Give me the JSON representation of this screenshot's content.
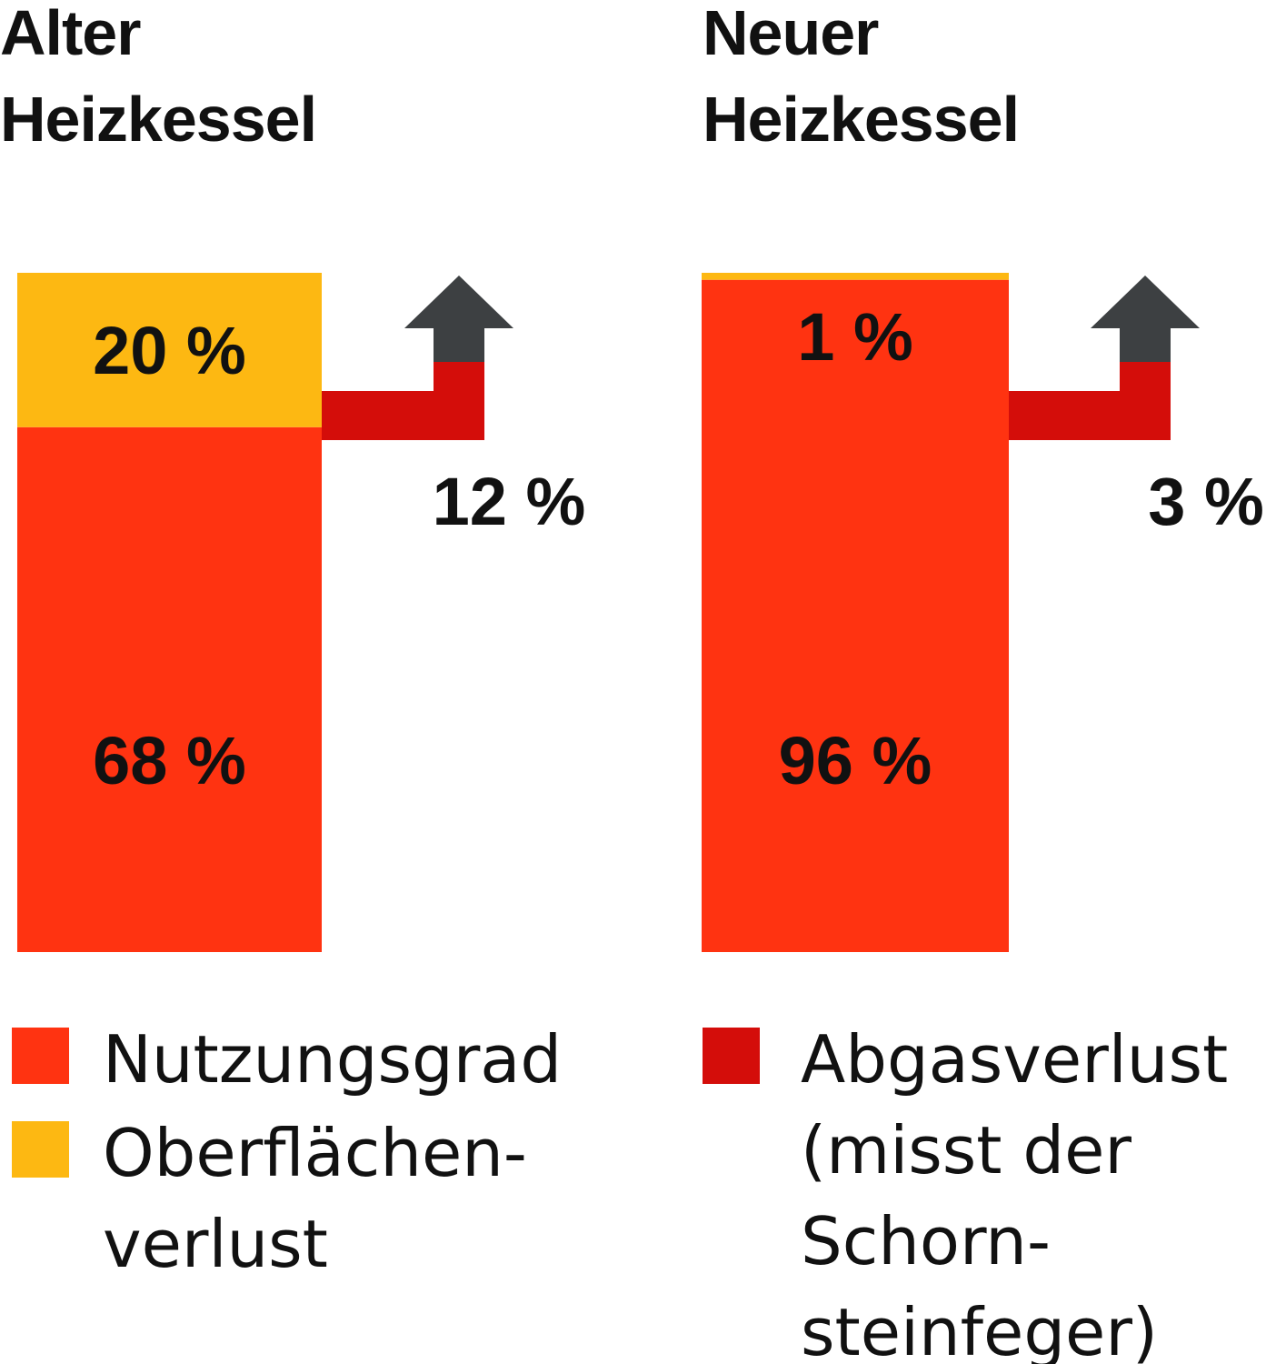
{
  "chart_data": {
    "type": "bar",
    "stacked": true,
    "categories": [
      "Alter Heizkessel",
      "Neuer Heizkessel"
    ],
    "panels": [
      {
        "title_lines": [
          "Alter",
          "Heizkessel"
        ],
        "segments": [
          {
            "key": "nutzungsgrad",
            "value": 68,
            "label": "68 %"
          },
          {
            "key": "oberflaechenverlust",
            "value": 20,
            "label": "20 %"
          }
        ],
        "abgas": {
          "value": 12,
          "label": "12 %"
        }
      },
      {
        "title_lines": [
          "Neuer",
          "Heizkessel"
        ],
        "segments": [
          {
            "key": "nutzungsgrad",
            "value": 96,
            "label": "96 %"
          },
          {
            "key": "oberflaechenverlust",
            "value": 1,
            "label": "1 %"
          }
        ],
        "abgas": {
          "value": 3,
          "label": "3 %"
        }
      }
    ],
    "legend": {
      "placement": "bottom",
      "items": [
        {
          "key": "nutzungsgrad",
          "lines": [
            "Nutzungsgrad"
          ],
          "color": "#FF3311"
        },
        {
          "key": "oberflaechenverlust",
          "lines": [
            "Oberflächen-",
            "verlust"
          ],
          "color": "#FDB812"
        },
        {
          "key": "abgasverlust",
          "lines": [
            "Abgasverlust",
            "(misst der",
            "Schorn-",
            "steinfeger)"
          ],
          "color": "#D40D0A"
        }
      ]
    },
    "colors": {
      "nutzungsgrad": "#FF3311",
      "oberflaechenverlust": "#FDB812",
      "abgasverlust": "#D40D0A",
      "arrow": "#3D4042"
    }
  }
}
